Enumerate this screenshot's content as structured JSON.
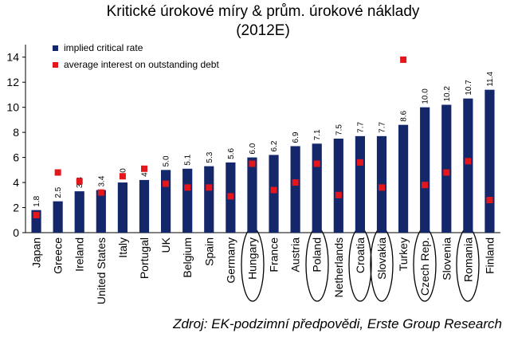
{
  "chart_data": {
    "type": "bar",
    "title": "Kritické úrokové míry & prům. úrokové náklady",
    "subtitle": "(2012E)",
    "source": "Zdroj: EK-podzimní předpovědi, Erste Group Research",
    "categories": [
      "Japan",
      "Greece",
      "Ireland",
      "United States",
      "Italy",
      "Portugal",
      "UK",
      "Belgium",
      "Spain",
      "Germany",
      "Hungary",
      "France",
      "Austria",
      "Poland",
      "Netherlands",
      "Croatia",
      "Slovakia",
      "Turkey",
      "Czech Rep.",
      "Slovenia",
      "Romania",
      "Finland"
    ],
    "series": [
      {
        "name": "implied critical rate",
        "color": "#14276b",
        "values": [
          1.8,
          2.5,
          3.3,
          3.4,
          4.0,
          4.2,
          5.0,
          5.1,
          5.3,
          5.6,
          6.0,
          6.2,
          6.9,
          7.1,
          7.5,
          7.7,
          7.7,
          8.6,
          10.0,
          10.2,
          10.7,
          11.4
        ],
        "value_labels": [
          "1.8",
          "2.5",
          "3.3",
          "3.4",
          "4.0",
          "4.2",
          "5.0",
          "5.1",
          "5.3",
          "5.6",
          "6.0",
          "6.2",
          "6.9",
          "7.1",
          "7.5",
          "7.7",
          "7.7",
          "8.6",
          "10.0",
          "10.2",
          "10.7",
          "11.4"
        ]
      },
      {
        "name": "average interest on outstanding debt",
        "color": "#e3171b",
        "values": [
          1.4,
          4.8,
          4.1,
          3.2,
          4.5,
          5.1,
          3.9,
          3.6,
          3.6,
          2.9,
          5.5,
          3.4,
          4.0,
          5.5,
          3.0,
          5.6,
          3.6,
          13.8,
          3.8,
          4.8,
          5.7,
          2.6
        ]
      }
    ],
    "ylim": [
      0,
      15
    ],
    "yticks": [
      0,
      2,
      4,
      6,
      8,
      10,
      12,
      14
    ]
  }
}
